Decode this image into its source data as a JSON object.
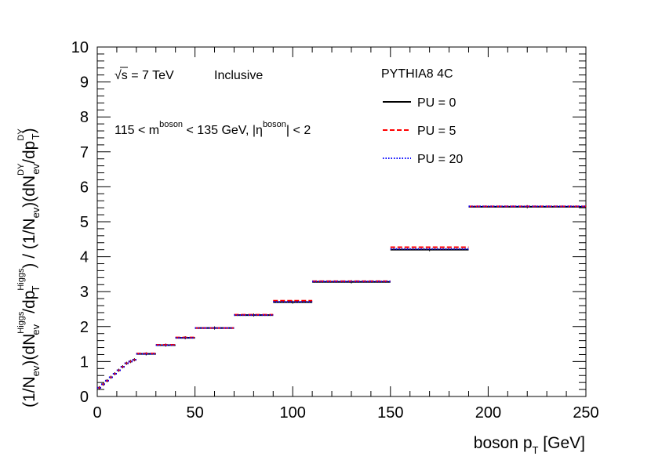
{
  "chart_data": {
    "type": "step",
    "title": "",
    "xlabel": {
      "main": "boson p",
      "sub": "T",
      "unit": " [GeV]"
    },
    "ylabel": {
      "p1": "(1/N",
      "p1_sub": "ev",
      "p2": ")(dN",
      "p2_sup": "Higgs",
      "p2_sub": "ev",
      "p3": "/dp",
      "p3_sup": "Higgs",
      "p3_sub": "T",
      "p4": ") / (1/N",
      "p4_sub": "ev",
      "p5": ")(dN",
      "p5_sup": "DY",
      "p5_sub": "ev",
      "p6": "/dp",
      "p6_sup": "DY",
      "p6_sub": "T",
      "p7": ")"
    },
    "xlim": [
      0,
      250
    ],
    "ylim": [
      0,
      10
    ],
    "xticks": [
      0,
      50,
      100,
      150,
      200,
      250
    ],
    "yticks": [
      0,
      1,
      2,
      3,
      4,
      5,
      6,
      7,
      8,
      9,
      10
    ],
    "bin_edges": [
      0,
      2,
      4,
      6,
      8,
      10,
      12,
      14,
      16,
      18,
      20,
      30,
      40,
      50,
      70,
      90,
      110,
      150,
      190,
      250
    ],
    "series": [
      {
        "name": "PU = 0",
        "color": "#000000",
        "style": "solid",
        "values": [
          0.25,
          0.35,
          0.45,
          0.55,
          0.65,
          0.75,
          0.85,
          0.95,
          1.0,
          1.05,
          1.22,
          1.47,
          1.68,
          1.96,
          2.33,
          2.7,
          3.28,
          4.2,
          5.43
        ]
      },
      {
        "name": "PU = 5",
        "color": "#ff0000",
        "style": "dashed",
        "values": [
          0.25,
          0.35,
          0.45,
          0.55,
          0.65,
          0.75,
          0.85,
          0.95,
          1.0,
          1.05,
          1.23,
          1.48,
          1.69,
          1.96,
          2.34,
          2.74,
          3.3,
          4.27,
          5.44
        ]
      },
      {
        "name": "PU = 20",
        "color": "#0000ff",
        "style": "dotted",
        "values": [
          0.25,
          0.35,
          0.45,
          0.55,
          0.65,
          0.75,
          0.85,
          0.95,
          1.0,
          1.05,
          1.22,
          1.47,
          1.68,
          1.96,
          2.33,
          2.71,
          3.29,
          4.22,
          5.44
        ]
      }
    ],
    "annotations": {
      "energy_sqrt": "√",
      "energy_rest": "s = 7 TeV",
      "selection": "Inclusive",
      "generator": "PYTHIA8 4C",
      "mass_cut": {
        "p1": "115 < m",
        "p1_sup": "boson",
        "p2": " < 135 GeV, |η",
        "p2_sup": "boson",
        "p3": "| < 2"
      }
    },
    "legend": {
      "placement": "top-right"
    }
  }
}
